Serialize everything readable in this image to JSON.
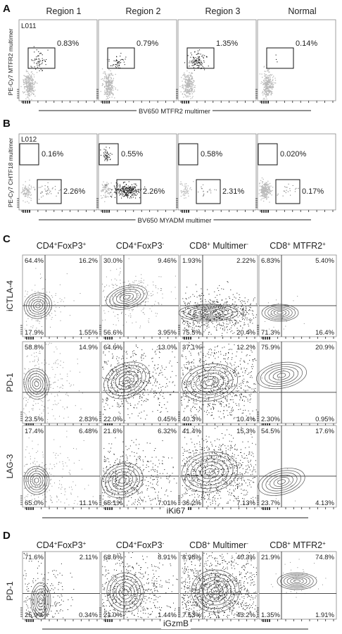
{
  "panel_a": {
    "letter": "A",
    "sample": "L011",
    "columns": [
      "Region 1",
      "Region 2",
      "Region 3",
      "Normal"
    ],
    "gate_percents": [
      "0.83%",
      "0.79%",
      "1.35%",
      "0.14%"
    ],
    "y_label": "PE-Cy7 MTFR2 multimer",
    "x_label": "BV650 MTFR2 multimer"
  },
  "panel_b": {
    "letter": "B",
    "sample": "L012",
    "top_percents": [
      "0.16%",
      "0.55%",
      "0.58%",
      "0.020%"
    ],
    "bottom_percents": [
      "2.26%",
      "2.26%",
      "2.31%",
      "0.17%"
    ],
    "y_label": "PE-Cy7 CHTF18 multimer",
    "x_label": "BV650 MYADM multimer"
  },
  "panel_c": {
    "letter": "C",
    "columns": [
      {
        "base": "CD4",
        "sup1": "+",
        "mid": "FoxP3",
        "sup2": "+"
      },
      {
        "base": "CD4",
        "sup1": "+",
        "mid": "FoxP3",
        "sup2": "-"
      },
      {
        "base": "CD8",
        "sup1": "+",
        "mid": " Multimer",
        "sup2": "-"
      },
      {
        "base": "CD8",
        "sup1": "+",
        "mid": " MTFR2",
        "sup2": "+"
      }
    ],
    "rows": [
      {
        "label": "iCTLA-4",
        "quadrants": [
          [
            "64.4%",
            "16.2%",
            "17.9%",
            "1.55%"
          ],
          [
            "30.0%",
            "9.46%",
            "56.6%",
            "3.95%"
          ],
          [
            "1.93%",
            "2.22%",
            "75.5%",
            "20.4%"
          ],
          [
            "6.83%",
            "5.40%",
            "71.3%",
            "16.4%"
          ]
        ]
      },
      {
        "label": "PD-1",
        "quadrants": [
          [
            "58.8%",
            "14.9%",
            "23.5%",
            "2.83%"
          ],
          [
            "64.6%",
            "13.0%",
            "22.0%",
            "0.45%"
          ],
          [
            "37.1%",
            "12.2%",
            "40.3%",
            "10.4%"
          ],
          [
            "75.9%",
            "20.9%",
            "2.30%",
            "0.95%"
          ]
        ]
      },
      {
        "label": "LAG-3",
        "quadrants": [
          [
            "17.4%",
            "6.48%",
            "65.0%",
            "11.1%"
          ],
          [
            "21.6%",
            "6.32%",
            "65.1%",
            "7.01%"
          ],
          [
            "41.4%",
            "15.3%",
            "36.2%",
            "7.13%"
          ],
          [
            "54.5%",
            "17.6%",
            "23.7%",
            "4.13%"
          ]
        ]
      }
    ],
    "x_label": "iKi67"
  },
  "panel_d": {
    "letter": "D",
    "columns": [
      {
        "base": "CD4",
        "sup1": "+",
        "mid": "FoxP3",
        "sup2": "+"
      },
      {
        "base": "CD4",
        "sup1": "+",
        "mid": "FoxP3",
        "sup2": "-"
      },
      {
        "base": "CD8",
        "sup1": "+",
        "mid": " Multimer",
        "sup2": "-"
      },
      {
        "base": "CD8",
        "sup1": "+",
        "mid": " MTFR2",
        "sup2": "+"
      }
    ],
    "row_label": "PD-1",
    "quadrants": [
      [
        "71.6%",
        "2.11%",
        "25.9%",
        "0.34%"
      ],
      [
        "68.6%",
        "8.91%",
        "21.0%",
        "1.44%"
      ],
      [
        "8.98%",
        "40.3%",
        "7.53%",
        "43.2%"
      ],
      [
        "21.9%",
        "74.8%",
        "1.35%",
        "1.91%"
      ]
    ],
    "x_label": "iGzmB"
  },
  "colors": {
    "light_events": "#b8b8b8",
    "dark_events": "#1a1a1a",
    "contour": "#555555",
    "frame": "#888888",
    "gate": "#111111"
  }
}
